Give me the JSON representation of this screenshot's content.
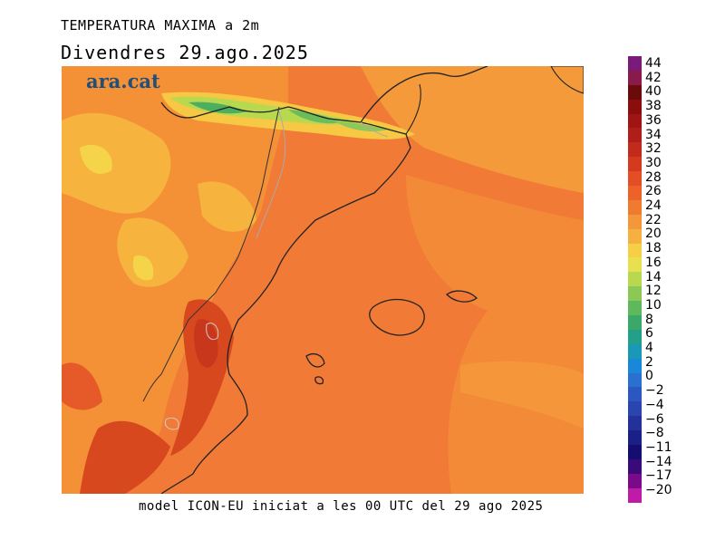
{
  "map": {
    "title": "TEMPERATURA MAXIMA a 2m",
    "subtitle": "Divendres  29.ago.2025",
    "footer": "model ICON-EU iniciat a les 00 UTC del 29 ago 2025",
    "logo_text": "ara.cat",
    "region_colors": {
      "sea": "#f07a36",
      "sea_light": "#f5923a",
      "inland_hot": "#e85a2a",
      "very_hot": "#c8361c",
      "warm": "#f49a3a",
      "mild": "#f6b43e",
      "cool_yellow": "#f5d44a",
      "mountain_green": "#8dc85a",
      "peak_green": "#4cae5e"
    }
  },
  "colorbar": {
    "labels": [
      "44",
      "42",
      "40",
      "38",
      "36",
      "34",
      "32",
      "30",
      "28",
      "26",
      "24",
      "22",
      "20",
      "18",
      "16",
      "14",
      "12",
      "10",
      "8",
      "6",
      "4",
      "2",
      "0",
      "−2",
      "−4",
      "−6",
      "−8",
      "−11",
      "−14",
      "−17",
      "−20"
    ],
    "colors": [
      "#7a1a7a",
      "#8a1a4a",
      "#6a0a0a",
      "#8a0e0e",
      "#a01414",
      "#b01e1a",
      "#c22a1c",
      "#d63a1e",
      "#e44e24",
      "#ec6228",
      "#f07a30",
      "#f4963a",
      "#f6b040",
      "#f5cf46",
      "#e8e04e",
      "#b8d850",
      "#8cc856",
      "#60b85c",
      "#3aa868",
      "#22a08a",
      "#1a98b8",
      "#1a88d8",
      "#2a70d0",
      "#2a58c0",
      "#2a44b0",
      "#22329a",
      "#1a2088",
      "#140e70",
      "#3a0a7a",
      "#7a0a8a",
      "#c01aa8"
    ]
  }
}
